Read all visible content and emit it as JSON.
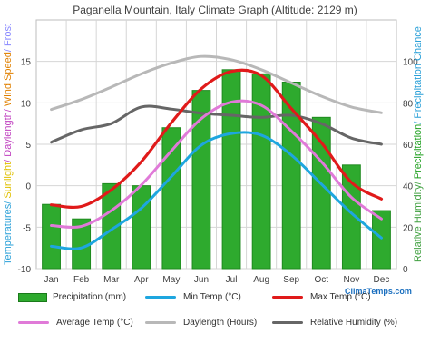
{
  "chart_data": {
    "type": "bar",
    "title": "Paganella Mountain, Italy Climate Graph (Altitude: 2129 m)",
    "categories": [
      "Jan",
      "Feb",
      "Mar",
      "Apr",
      "May",
      "Jun",
      "Jul",
      "Aug",
      "Sep",
      "Oct",
      "Nov",
      "Dec"
    ],
    "ylabel_left": [
      {
        "text": "Temperatures/ ",
        "color": "#2aa0d8"
      },
      {
        "text": "Sunlight",
        "color": "#e0c000"
      },
      {
        "text": "/ Daylength/ ",
        "color": "#c040c0"
      },
      {
        "text": "Wind Speed",
        "color": "#e08000"
      },
      {
        "text": "/ Frost",
        "color": "#8888ff"
      }
    ],
    "ylabel_right": [
      {
        "text": "Relative Humidity/ ",
        "color": "#40a040"
      },
      {
        "text": "Precipitation",
        "color": "#20a020"
      },
      {
        "text": "/ Precipitation Chance",
        "color": "#2aa0d8"
      }
    ],
    "ylim_left": [
      -10,
      20
    ],
    "yticks_left": [
      -10,
      -5,
      0,
      5,
      10,
      15
    ],
    "ylim_right": [
      0,
      120
    ],
    "yticks_right": [
      0,
      20,
      40,
      60,
      80,
      100
    ],
    "grid": true,
    "series": [
      {
        "name": "Precipitation (mm)",
        "kind": "bar",
        "axis": "right",
        "color": "#2eaa2e",
        "values": [
          31,
          24,
          41,
          40,
          68,
          86,
          96,
          94,
          90,
          73,
          50,
          28
        ]
      },
      {
        "name": "Min Temp (°C)",
        "kind": "line",
        "axis": "left",
        "color": "#1ea6df",
        "values": [
          -7.3,
          -7.5,
          -5.3,
          -2.7,
          1.1,
          4.9,
          6.3,
          6.1,
          3.7,
          0.2,
          -3.3,
          -6.3
        ]
      },
      {
        "name": "Max Temp (°C)",
        "kind": "line",
        "axis": "left",
        "color": "#e01a1a",
        "values": [
          -2.3,
          -2.5,
          -0.5,
          2.9,
          7.6,
          11.7,
          13.8,
          13.3,
          9.3,
          5.2,
          0.4,
          -1.6
        ]
      },
      {
        "name": "Average Temp (°C)",
        "kind": "line",
        "axis": "left",
        "color": "#e07ad8",
        "values": [
          -4.8,
          -4.9,
          -3.0,
          0.1,
          4.2,
          8.1,
          10.1,
          9.7,
          6.6,
          2.9,
          -1.4,
          -4.0
        ]
      },
      {
        "name": "Daylength (Hours)",
        "kind": "line",
        "axis": "left",
        "color": "#b8b8b8",
        "values": [
          9.2,
          10.4,
          11.9,
          13.5,
          14.8,
          15.6,
          15.2,
          14.0,
          12.4,
          10.8,
          9.5,
          8.8
        ]
      },
      {
        "name": "Relative Humidity (%)",
        "kind": "line",
        "axis": "right",
        "color": "#666666",
        "values": [
          61,
          67,
          70,
          78,
          77,
          75,
          74,
          73,
          74,
          70,
          63,
          60
        ]
      }
    ]
  },
  "watermark": "ClimaTemps.com"
}
